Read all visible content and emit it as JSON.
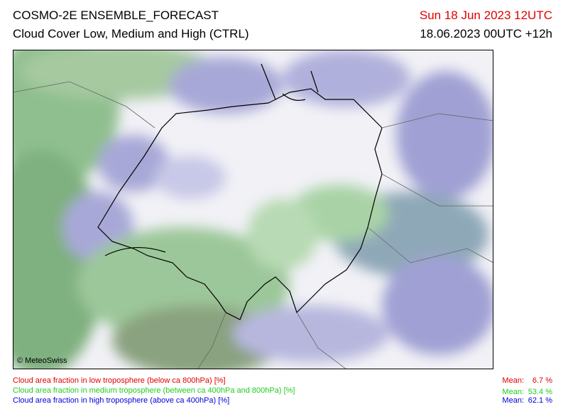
{
  "header": {
    "title": "COSMO-2E ENSEMBLE_FORECAST",
    "subtitle": "Cloud Cover Low, Medium and High (CTRL)",
    "valid_time": "Sun 18 Jun 2023 12UTC",
    "run_time": "18.06.2023 00UTC +12h"
  },
  "map": {
    "credit": "© MeteoSwiss"
  },
  "legend": [
    {
      "label": "Cloud area fraction in low troposphere (below ca 800hPa) [%]",
      "mean_label": "Mean:",
      "mean": "6.7 %"
    },
    {
      "label": "Cloud area fraction in medium troposphere (between ca 400hPa and 800hPa) [%]",
      "mean_label": "Mean:",
      "mean": "53.4 %"
    },
    {
      "label": "Cloud area fraction in high troposphere (above ca 400hPa) [%]",
      "mean_label": "Mean:",
      "mean": "62.1 %"
    }
  ]
}
